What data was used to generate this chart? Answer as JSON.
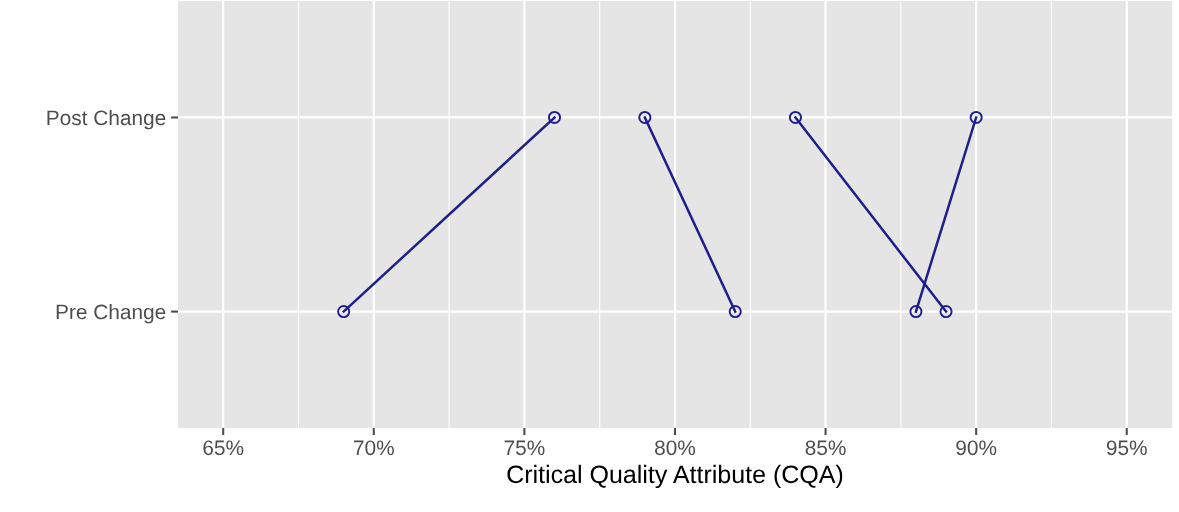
{
  "chart_data": {
    "type": "line",
    "orientation": "horizontal",
    "xlabel": "Critical Quality Attribute (CQA)",
    "categories": [
      "Post Change",
      "Pre Change"
    ],
    "series": [
      {
        "color": "#1f1f8c",
        "values": [
          76,
          69
        ]
      },
      {
        "color": "#1f1f8c",
        "values": [
          79,
          82
        ]
      },
      {
        "color": "#1f1f8c",
        "values": [
          84,
          89
        ]
      },
      {
        "color": "#1f1f8c",
        "values": [
          90,
          88
        ]
      }
    ],
    "xlim": [
      63.5,
      96.5
    ],
    "xticks": [
      {
        "value": 65,
        "label": "65%"
      },
      {
        "value": 70,
        "label": "70%"
      },
      {
        "value": 75,
        "label": "75%"
      },
      {
        "value": 80,
        "label": "80%"
      },
      {
        "value": 85,
        "label": "85%"
      },
      {
        "value": 90,
        "label": "90%"
      },
      {
        "value": 95,
        "label": "95%"
      }
    ],
    "grid": true,
    "marker": "circle",
    "line_style": "solid"
  }
}
